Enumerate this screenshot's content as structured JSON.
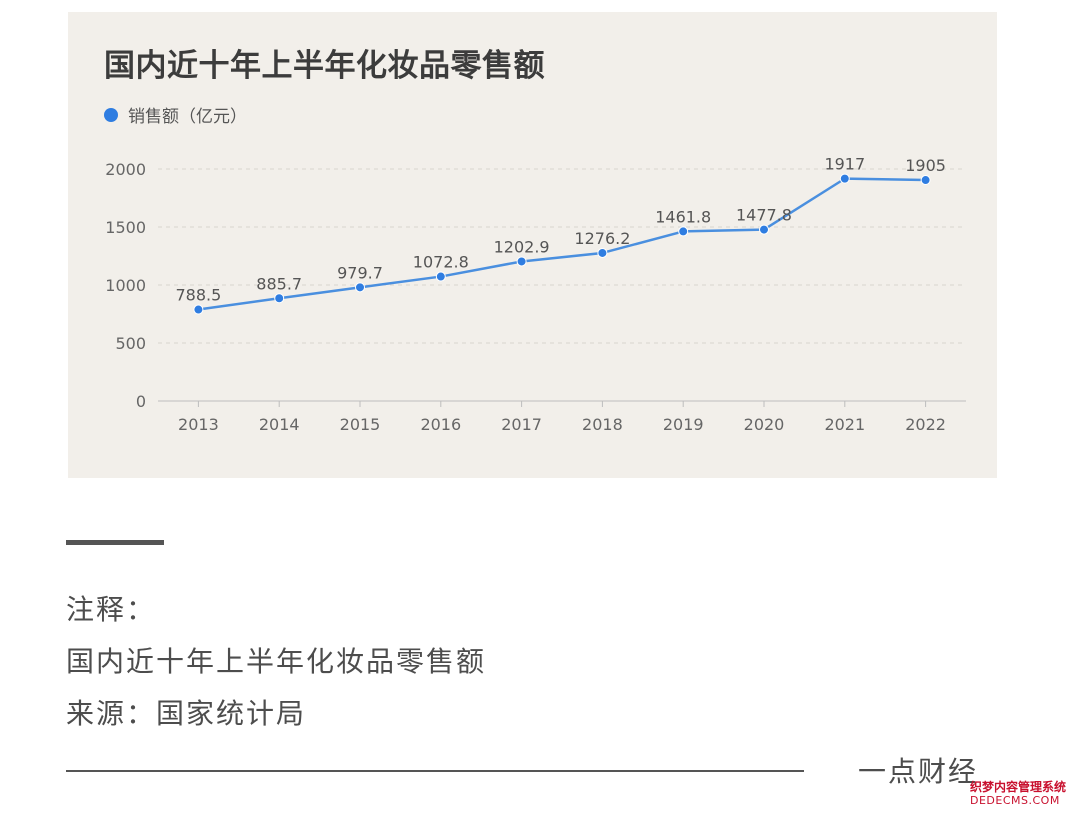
{
  "chart_data": {
    "type": "line",
    "title": "国内近十年上半年化妆品零售额",
    "categories": [
      "2013",
      "2014",
      "2015",
      "2016",
      "2017",
      "2018",
      "2019",
      "2020",
      "2021",
      "2022"
    ],
    "series": [
      {
        "name": "销售额（亿元）",
        "values": [
          788.5,
          885.7,
          979.7,
          1072.8,
          1202.9,
          1276.2,
          1461.8,
          1477.8,
          1917,
          1905
        ],
        "labels": [
          "788.5",
          "885.7",
          "979.7",
          "1072.8",
          "1202.9",
          "1276.2",
          "1461.8",
          "1477.8",
          "1917",
          "1905"
        ]
      }
    ],
    "yticks": [
      "0",
      "500",
      "1000",
      "1500",
      "2000"
    ],
    "ylim": [
      0,
      2000
    ],
    "grid": true,
    "legend": "top-left",
    "colors": {
      "line": "#4a8fdf",
      "point": "#2f7de1",
      "grid": "#d8d5cf",
      "axis": "#bdbdbd",
      "tick_text": "#666666",
      "label_text": "#555555"
    }
  },
  "notes": {
    "heading": "注释：",
    "line1": "国内近十年上半年化妆品零售额",
    "line2": "来源：国家统计局"
  },
  "brand": "一点财经",
  "watermark": {
    "line1": "织梦内容管理系统",
    "line2": "DEDECMS.COM"
  }
}
